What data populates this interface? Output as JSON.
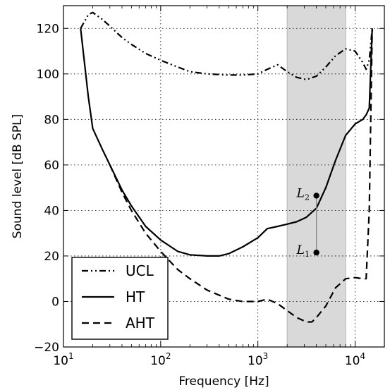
{
  "chart_data": {
    "type": "line",
    "xlabel": "Frequency [Hz]",
    "ylabel": "Sound level [dB SPL]",
    "xscale": "log",
    "xlim": [
      10,
      20000
    ],
    "ylim": [
      -20,
      130
    ],
    "grid": true,
    "legend": "bottom-left",
    "x_ticks": [
      {
        "base": "10",
        "exp": "1",
        "value": 10
      },
      {
        "base": "10",
        "exp": "2",
        "value": 100
      },
      {
        "base": "10",
        "exp": "3",
        "value": 1000
      },
      {
        "base": "10",
        "exp": "4",
        "value": 10000
      }
    ],
    "y_ticks": [
      -20,
      0,
      20,
      40,
      60,
      80,
      100,
      120
    ],
    "shaded_band": {
      "x_start": 2000,
      "x_end": 8000,
      "color": "#d9d9d9"
    },
    "series": [
      {
        "name": "UCL",
        "style": "dashdot",
        "x": [
          15,
          18,
          20,
          25,
          30,
          40,
          50,
          70,
          100,
          150,
          200,
          300,
          500,
          700,
          1000,
          1250,
          1600,
          2000,
          2500,
          3150,
          4000,
          5000,
          6300,
          8000,
          10000,
          12000,
          13000,
          14000,
          15000
        ],
        "y": [
          120,
          126,
          127,
          124,
          121,
          116,
          113,
          109,
          106,
          103,
          101,
          100,
          99.5,
          99.5,
          100,
          102,
          104,
          101,
          98.5,
          97.5,
          99,
          103,
          108,
          111,
          110,
          105,
          102,
          106,
          120
        ]
      },
      {
        "name": "HT",
        "style": "solid",
        "x": [
          15,
          18,
          20,
          25,
          30,
          40,
          50,
          70,
          100,
          150,
          200,
          300,
          400,
          500,
          700,
          1000,
          1250,
          1600,
          2000,
          2500,
          3150,
          4000,
          5000,
          6300,
          8000,
          10000,
          12000,
          13000,
          14000,
          15000
        ],
        "y": [
          120,
          90,
          76,
          67,
          60,
          49,
          42,
          33,
          27,
          22,
          20.5,
          20,
          20,
          21,
          24,
          28,
          32,
          33,
          34,
          35,
          37,
          41,
          50,
          62,
          73,
          78,
          80,
          82,
          85,
          120
        ]
      },
      {
        "name": "AHT",
        "style": "dashed",
        "x": [
          30,
          40,
          50,
          70,
          100,
          150,
          200,
          300,
          500,
          700,
          1000,
          1250,
          1600,
          2000,
          2500,
          3150,
          3600,
          4000,
          5000,
          6300,
          8000,
          10000,
          12000,
          13000,
          14000,
          15000
        ],
        "y": [
          60,
          48,
          40,
          30,
          22,
          14,
          10,
          5,
          1,
          0,
          0,
          1,
          -1,
          -4,
          -7,
          -9,
          -9,
          -7,
          -2,
          6,
          10,
          10.5,
          10,
          10,
          40,
          120
        ]
      }
    ],
    "annotations": [
      {
        "base": "L",
        "sub": "2",
        "x": 4000,
        "y": 46.5
      },
      {
        "base": "L",
        "sub": "1",
        "x": 4000,
        "y": 21.5
      }
    ]
  }
}
